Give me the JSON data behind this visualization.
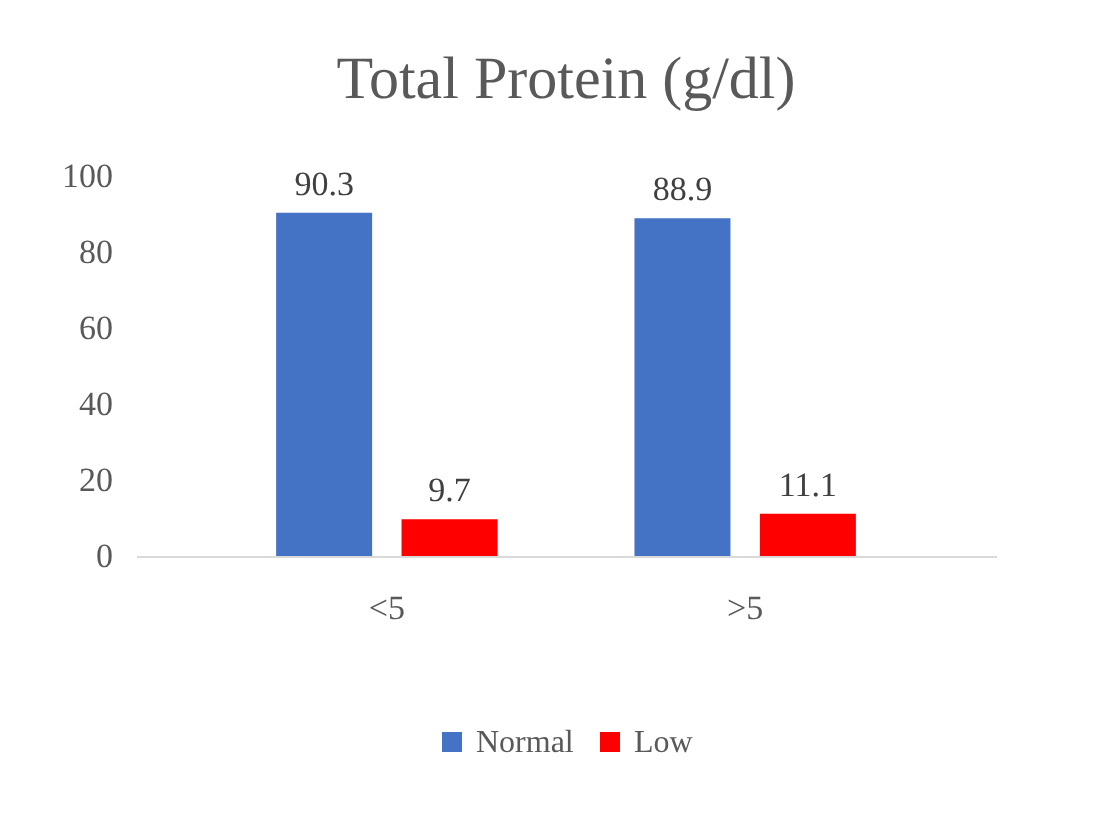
{
  "chart_data": {
    "type": "bar",
    "title": "Total Protein (g/dl)",
    "categories": [
      "<5",
      ">5"
    ],
    "series": [
      {
        "name": "Normal",
        "color": "#4472c4",
        "values": [
          90.3,
          88.9
        ]
      },
      {
        "name": "Low",
        "color": "#ff0000",
        "values": [
          9.7,
          11.1
        ]
      }
    ],
    "ylim": [
      0,
      100
    ],
    "yticks": [
      0,
      20,
      40,
      60,
      80,
      100
    ],
    "grid": false,
    "legend": "bottom",
    "data_labels": true
  }
}
